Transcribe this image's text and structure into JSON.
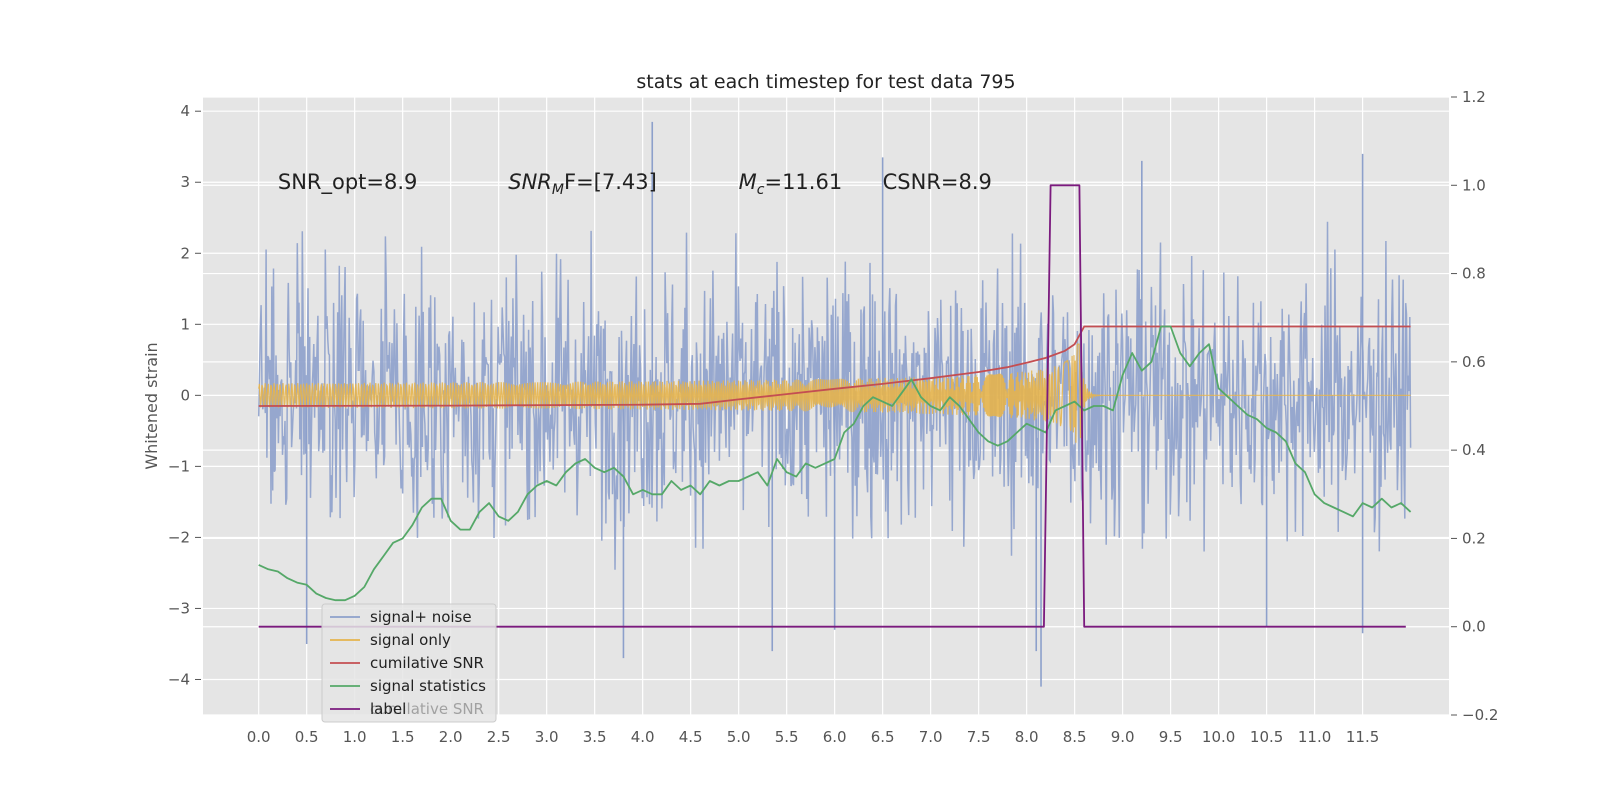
{
  "chart_data": {
    "type": "line",
    "title": "stats at each timestep for test data 795",
    "ylabel": "Whitened strain",
    "xlabel": "",
    "xlim": [
      -0.58,
      12.4
    ],
    "ylim": [
      -4.5,
      4.2
    ],
    "y2lim": [
      -0.2,
      1.2
    ],
    "x_ticks": [
      "0.0",
      "0.5",
      "1.0",
      "1.5",
      "2.0",
      "2.5",
      "3.0",
      "3.5",
      "4.0",
      "4.5",
      "5.0",
      "5.5",
      "6.0",
      "6.5",
      "7.0",
      "7.5",
      "8.0",
      "8.5",
      "9.0",
      "9.5",
      "10.0",
      "10.5",
      "11.0",
      "11.5"
    ],
    "y_ticks": [
      "4",
      "3",
      "2",
      "1",
      "0",
      "−1",
      "−2",
      "−3",
      "−4"
    ],
    "y2_ticks": [
      "1.2",
      "1.0",
      "0.8",
      "0.6",
      "0.4",
      "0.2",
      "0.0",
      "−0.2"
    ],
    "grid": true,
    "annotations": [
      {
        "prefix": "SNR_opt=8.9",
        "sub": "",
        "suffix": "",
        "italic": false,
        "x": 0.2,
        "y": 3.0
      },
      {
        "prefix": "SNR",
        "sub": "M",
        "suffix": "F=[7.43]",
        "italic": true,
        "x": 2.6,
        "y": 3.0
      },
      {
        "prefix": "M",
        "sub": "c",
        "suffix": "=11.61",
        "italic": true,
        "x": 5.0,
        "y": 3.0
      },
      {
        "prefix": "CSNR=8.9",
        "sub": "",
        "suffix": "",
        "italic": false,
        "x": 6.5,
        "y": 3.0
      }
    ],
    "legend": {
      "placement": "lower-left",
      "entries": [
        "signal+ noise",
        "signal only",
        "cumilative SNR",
        "signal statistics",
        "label"
      ],
      "ghost_text": "cumilative SNR"
    },
    "series": [
      {
        "name": "signal+ noise",
        "kind": "noise",
        "color": "#8da0cb",
        "x_range": [
          0.0,
          12.0
        ],
        "typical_envelope": [
          -1.9,
          1.9
        ],
        "extremes": [
          {
            "x": 0.5,
            "y": -3.5
          },
          {
            "x": 3.8,
            "y": -3.7
          },
          {
            "x": 4.1,
            "y": 3.85
          },
          {
            "x": 5.35,
            "y": -3.6
          },
          {
            "x": 6.0,
            "y": -3.3
          },
          {
            "x": 6.5,
            "y": 3.35
          },
          {
            "x": 8.15,
            "y": -4.1
          },
          {
            "x": 8.1,
            "y": -3.6
          },
          {
            "x": 9.2,
            "y": 3.3
          },
          {
            "x": 10.5,
            "y": -3.25
          },
          {
            "x": 11.5,
            "y": 3.4
          },
          {
            "x": 11.5,
            "y": -3.35
          }
        ]
      },
      {
        "name": "signal only",
        "kind": "chirp",
        "color": "#e5b44c",
        "x_range": [
          0.0,
          12.0
        ],
        "chirp_peak_x": 8.55,
        "chirp_peak_amplitude": 0.78,
        "post_merger_value": 0.0
      },
      {
        "name": "cumilative SNR",
        "axis": "right",
        "color": "#c44e52",
        "x": [
          0.0,
          2.0,
          4.0,
          4.6,
          5.0,
          5.5,
          6.0,
          6.5,
          7.0,
          7.5,
          7.8,
          8.0,
          8.2,
          8.4,
          8.5,
          8.6,
          12.0
        ],
        "y": [
          0.5,
          0.501,
          0.503,
          0.505,
          0.515,
          0.527,
          0.539,
          0.55,
          0.563,
          0.577,
          0.588,
          0.598,
          0.609,
          0.625,
          0.64,
          0.68,
          0.68
        ]
      },
      {
        "name": "signal statistics",
        "axis": "right",
        "color": "#55a868",
        "x": [
          0.0,
          0.1,
          0.2,
          0.3,
          0.4,
          0.5,
          0.6,
          0.7,
          0.8,
          0.9,
          1.0,
          1.1,
          1.2,
          1.3,
          1.4,
          1.5,
          1.6,
          1.7,
          1.8,
          1.9,
          2.0,
          2.1,
          2.2,
          2.3,
          2.4,
          2.5,
          2.6,
          2.7,
          2.8,
          2.9,
          3.0,
          3.1,
          3.2,
          3.3,
          3.4,
          3.5,
          3.6,
          3.7,
          3.8,
          3.9,
          4.0,
          4.1,
          4.2,
          4.3,
          4.4,
          4.5,
          4.6,
          4.7,
          4.8,
          4.9,
          5.0,
          5.1,
          5.2,
          5.3,
          5.4,
          5.5,
          5.6,
          5.7,
          5.8,
          5.9,
          6.0,
          6.1,
          6.2,
          6.3,
          6.4,
          6.5,
          6.6,
          6.7,
          6.8,
          6.9,
          7.0,
          7.1,
          7.2,
          7.3,
          7.4,
          7.5,
          7.6,
          7.7,
          7.8,
          7.9,
          8.0,
          8.1,
          8.2,
          8.3,
          8.4,
          8.5,
          8.6,
          8.7,
          8.8,
          8.9,
          9.0,
          9.1,
          9.2,
          9.3,
          9.4,
          9.5,
          9.6,
          9.7,
          9.8,
          9.9,
          10.0,
          10.1,
          10.2,
          10.3,
          10.4,
          10.5,
          10.6,
          10.7,
          10.8,
          10.9,
          11.0,
          11.1,
          11.2,
          11.3,
          11.4,
          11.5,
          11.6,
          11.7,
          11.8,
          11.9,
          12.0
        ],
        "y": [
          0.14,
          0.13,
          0.125,
          0.11,
          0.1,
          0.095,
          0.075,
          0.065,
          0.06,
          0.06,
          0.07,
          0.09,
          0.13,
          0.16,
          0.19,
          0.2,
          0.23,
          0.27,
          0.29,
          0.29,
          0.24,
          0.22,
          0.22,
          0.26,
          0.28,
          0.25,
          0.24,
          0.26,
          0.3,
          0.32,
          0.33,
          0.32,
          0.35,
          0.37,
          0.38,
          0.36,
          0.35,
          0.36,
          0.34,
          0.3,
          0.31,
          0.3,
          0.3,
          0.33,
          0.31,
          0.32,
          0.3,
          0.33,
          0.32,
          0.33,
          0.33,
          0.34,
          0.35,
          0.32,
          0.38,
          0.35,
          0.34,
          0.37,
          0.36,
          0.37,
          0.38,
          0.44,
          0.46,
          0.5,
          0.52,
          0.51,
          0.5,
          0.53,
          0.56,
          0.52,
          0.5,
          0.49,
          0.52,
          0.5,
          0.47,
          0.44,
          0.42,
          0.41,
          0.42,
          0.44,
          0.46,
          0.45,
          0.44,
          0.49,
          0.5,
          0.51,
          0.49,
          0.5,
          0.5,
          0.49,
          0.57,
          0.62,
          0.58,
          0.6,
          0.68,
          0.68,
          0.62,
          0.59,
          0.62,
          0.64,
          0.54,
          0.52,
          0.5,
          0.48,
          0.47,
          0.45,
          0.44,
          0.42,
          0.37,
          0.35,
          0.3,
          0.28,
          0.27,
          0.26,
          0.25,
          0.28,
          0.27,
          0.29,
          0.27,
          0.28,
          0.26
        ]
      },
      {
        "name": "label",
        "axis": "right",
        "color": "#7b1a7e",
        "x": [
          0.0,
          8.18,
          8.25,
          8.55,
          8.6,
          11.95
        ],
        "y": [
          0.0,
          0.0,
          1.0,
          1.0,
          0.0,
          0.0
        ]
      }
    ]
  }
}
